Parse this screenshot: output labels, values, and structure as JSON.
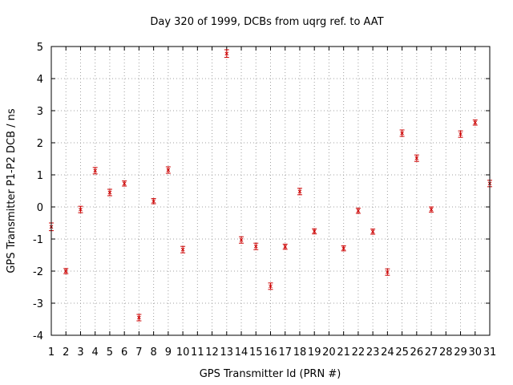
{
  "chart_data": {
    "type": "scatter",
    "title": "Day 320 of 1999, DCBs from uqrg ref. to AAT",
    "xlabel": "GPS Transmitter Id (PRN #)",
    "ylabel": "GPS Transmitter P1-P2 DCB / ns",
    "xlim": [
      1,
      31
    ],
    "ylim": [
      -4,
      5
    ],
    "xticks": [
      1,
      2,
      3,
      4,
      5,
      6,
      7,
      8,
      9,
      10,
      11,
      12,
      13,
      14,
      15,
      16,
      17,
      18,
      19,
      20,
      21,
      22,
      23,
      24,
      25,
      26,
      27,
      28,
      29,
      30,
      31
    ],
    "yticks": [
      -4,
      -3,
      -2,
      -1,
      0,
      1,
      2,
      3,
      4,
      5
    ],
    "grid": true,
    "marker_color": "#cc0000",
    "points": [
      {
        "prn": 1,
        "value": -0.62,
        "err": 0.12
      },
      {
        "prn": 2,
        "value": -2.0,
        "err": 0.08
      },
      {
        "prn": 3,
        "value": -0.08,
        "err": 0.1
      },
      {
        "prn": 4,
        "value": 1.13,
        "err": 0.1
      },
      {
        "prn": 5,
        "value": 0.45,
        "err": 0.1
      },
      {
        "prn": 6,
        "value": 0.73,
        "err": 0.08
      },
      {
        "prn": 7,
        "value": -3.45,
        "err": 0.1
      },
      {
        "prn": 8,
        "value": 0.18,
        "err": 0.08
      },
      {
        "prn": 9,
        "value": 1.15,
        "err": 0.1
      },
      {
        "prn": 10,
        "value": -1.33,
        "err": 0.1
      },
      {
        "prn": 13,
        "value": 4.78,
        "err": 0.12
      },
      {
        "prn": 14,
        "value": -1.03,
        "err": 0.1
      },
      {
        "prn": 15,
        "value": -1.23,
        "err": 0.1
      },
      {
        "prn": 16,
        "value": -2.47,
        "err": 0.1
      },
      {
        "prn": 17,
        "value": -1.24,
        "err": 0.08
      },
      {
        "prn": 18,
        "value": 0.48,
        "err": 0.1
      },
      {
        "prn": 19,
        "value": -0.76,
        "err": 0.08
      },
      {
        "prn": 21,
        "value": -1.29,
        "err": 0.08
      },
      {
        "prn": 22,
        "value": -0.12,
        "err": 0.08
      },
      {
        "prn": 23,
        "value": -0.77,
        "err": 0.08
      },
      {
        "prn": 24,
        "value": -2.03,
        "err": 0.1
      },
      {
        "prn": 25,
        "value": 2.3,
        "err": 0.1
      },
      {
        "prn": 26,
        "value": 1.52,
        "err": 0.1
      },
      {
        "prn": 27,
        "value": -0.08,
        "err": 0.08
      },
      {
        "prn": 29,
        "value": 2.27,
        "err": 0.1
      },
      {
        "prn": 30,
        "value": 2.63,
        "err": 0.08
      },
      {
        "prn": 31,
        "value": 0.73,
        "err": 0.1
      }
    ]
  }
}
